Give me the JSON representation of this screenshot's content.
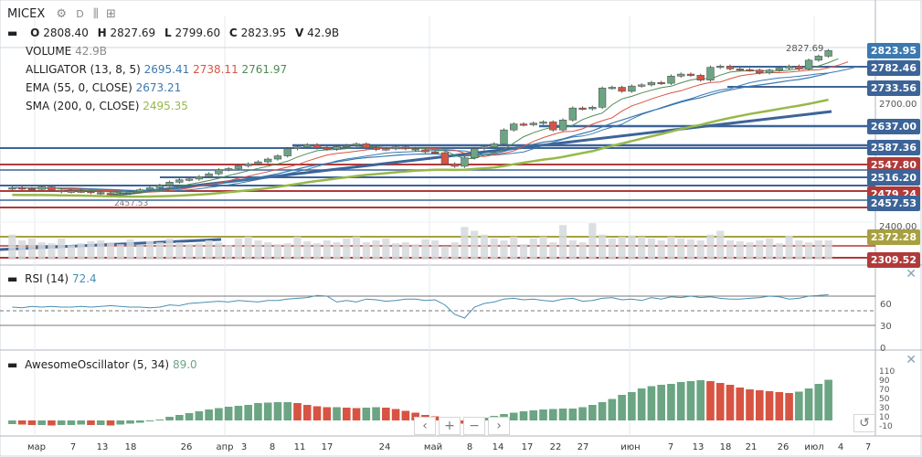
{
  "header": {
    "symbol": "MICEX",
    "interval": "D",
    "ohlc": {
      "o_label": "O",
      "o": "2808.40",
      "h_label": "H",
      "h": "2827.69",
      "l_label": "L",
      "l": "2799.60",
      "c_label": "C",
      "c": "2823.95",
      "v_label": "V",
      "v": "42.9B"
    }
  },
  "indicators": {
    "volume": {
      "label": "VOLUME",
      "value": "42.9B"
    },
    "alligator": {
      "label": "ALLIGATOR (13, 8, 5)",
      "v1": "2695.41",
      "v2": "2738.11",
      "v3": "2761.97"
    },
    "ema": {
      "label": "EMA (55, 0, CLOSE)",
      "value": "2673.21"
    },
    "sma": {
      "label": "SMA (200, 0, CLOSE)",
      "value": "2495.35"
    },
    "rsi": {
      "label": "RSI (14)",
      "value": "72.4"
    },
    "ao": {
      "label": "AwesomeOscillator (5, 34)",
      "value": "89.0"
    }
  },
  "colors": {
    "up": "#6ba583",
    "down": "#d75442",
    "ema": "#3b79b0",
    "sma": "#97b84a",
    "alligator_jaw": "#3b79b0",
    "alligator_teeth": "#d75442",
    "alligator_lips": "#4f8a55",
    "line_blue": "#3d6498",
    "line_red": "#b03a3a",
    "line_olive": "#a8a040",
    "rsi": "#4a8fb5"
  },
  "chart_data": [
    {
      "type": "candlestick",
      "title": "MICEX",
      "ylim": [
        2300,
        2850
      ],
      "price_ticks": [
        "2827.69",
        "2700.00",
        "2400.00"
      ],
      "x_ticks": [
        "мар",
        "7",
        "13",
        "18",
        "26",
        "апр",
        "3",
        "8",
        "11",
        "17",
        "24",
        "май",
        "8",
        "14",
        "17",
        "22",
        "27",
        "июн",
        "7",
        "13",
        "18",
        "21",
        "26",
        "июл",
        "4",
        "7"
      ],
      "price_labels": [
        {
          "value": "2823.95",
          "color": "#3b79b0"
        },
        {
          "value": "2782.46",
          "color": "#3d6498"
        },
        {
          "value": "2733.56",
          "color": "#3d6498"
        },
        {
          "value": "2637.00",
          "color": "#3d6498"
        },
        {
          "value": "2587.36",
          "color": "#3d6498"
        },
        {
          "value": "2547.80",
          "color": "#b03a3a"
        },
        {
          "value": "2516.20",
          "color": "#3d6498"
        },
        {
          "value": "2479.24",
          "color": "#b03a3a"
        },
        {
          "value": "2457.53",
          "color": "#3d6498"
        },
        {
          "value": "2372.28",
          "color": "#a8a040"
        },
        {
          "value": "2309.52",
          "color": "#b03a3a"
        }
      ],
      "annotation_price": "2827.69",
      "annotation_low": "2457.53",
      "close": [
        2480,
        2478,
        2476,
        2482,
        2474,
        2470,
        2472,
        2471,
        2468,
        2466,
        2465,
        2466,
        2470,
        2475,
        2480,
        2486,
        2494,
        2500,
        2502,
        2508,
        2515,
        2525,
        2528,
        2535,
        2540,
        2545,
        2552,
        2560,
        2578,
        2582,
        2588,
        2580,
        2577,
        2583,
        2586,
        2590,
        2580,
        2576,
        2578,
        2582,
        2578,
        2575,
        2570,
        2568,
        2540,
        2534,
        2555,
        2578,
        2582,
        2590,
        2625,
        2640,
        2638,
        2642,
        2645,
        2625,
        2650,
        2680,
        2678,
        2682,
        2730,
        2732,
        2722,
        2735,
        2738,
        2744,
        2742,
        2760,
        2765,
        2762,
        2750,
        2782,
        2785,
        2778,
        2776,
        2775,
        2768,
        2775,
        2780,
        2785,
        2778,
        2800,
        2810,
        2824
      ],
      "volume": [
        26,
        20,
        22,
        18,
        17,
        22,
        15,
        17,
        19,
        20,
        18,
        16,
        21,
        15,
        19,
        18,
        22,
        18,
        16,
        17,
        20,
        18,
        15,
        22,
        24,
        20,
        18,
        16,
        17,
        24,
        19,
        17,
        20,
        18,
        22,
        24,
        18,
        20,
        22,
        17,
        18,
        16,
        21,
        20,
        14,
        18,
        34,
        30,
        26,
        22,
        20,
        24,
        16,
        22,
        24,
        18,
        36,
        20,
        18,
        38,
        26,
        22,
        24,
        25,
        24,
        22,
        20,
        24,
        22,
        21,
        20,
        26,
        30,
        20,
        19,
        18,
        20,
        22,
        17,
        25,
        20,
        18,
        20,
        20
      ],
      "rsi": {
        "ylim": [
          0,
          100
        ],
        "ticks": [
          "60",
          "30",
          "0"
        ],
        "levels": [
          70,
          30
        ],
        "values": [
          55,
          54,
          56,
          55,
          56,
          55,
          55,
          56,
          55,
          56,
          57,
          56,
          55,
          55,
          54,
          55,
          58,
          57,
          60,
          61,
          62,
          63,
          62,
          64,
          63,
          62,
          64,
          64,
          66,
          67,
          68,
          71,
          70,
          62,
          64,
          62,
          66,
          65,
          63,
          64,
          66,
          66,
          64,
          65,
          58,
          45,
          40,
          55,
          60,
          62,
          66,
          67,
          65,
          66,
          64,
          63,
          66,
          67,
          63,
          64,
          67,
          68,
          65,
          66,
          64,
          68,
          66,
          69,
          68,
          70,
          68,
          69,
          67,
          66,
          66,
          67,
          68,
          70,
          69,
          66,
          67,
          70,
          71,
          72
        ]
      },
      "ao": {
        "ticks": [
          "110",
          "90",
          "70",
          "50",
          "30",
          "10",
          "-10"
        ],
        "values": [
          -8,
          -9,
          -10,
          -10,
          -11,
          -10,
          -10,
          -9,
          -10,
          -10,
          -11,
          -9,
          -7,
          -5,
          -2,
          2,
          8,
          12,
          16,
          20,
          24,
          27,
          30,
          32,
          34,
          38,
          39,
          40,
          40,
          38,
          34,
          31,
          29,
          29,
          28,
          27,
          28,
          29,
          28,
          25,
          21,
          17,
          12,
          9,
          4,
          -4,
          -7,
          -3,
          6,
          10,
          14,
          17,
          20,
          22,
          24,
          25,
          26,
          26,
          29,
          34,
          40,
          47,
          56,
          62,
          70,
          75,
          78,
          80,
          84,
          86,
          88,
          86,
          82,
          78,
          72,
          68,
          66,
          64,
          62,
          60,
          63,
          70,
          80,
          89
        ]
      }
    }
  ]
}
